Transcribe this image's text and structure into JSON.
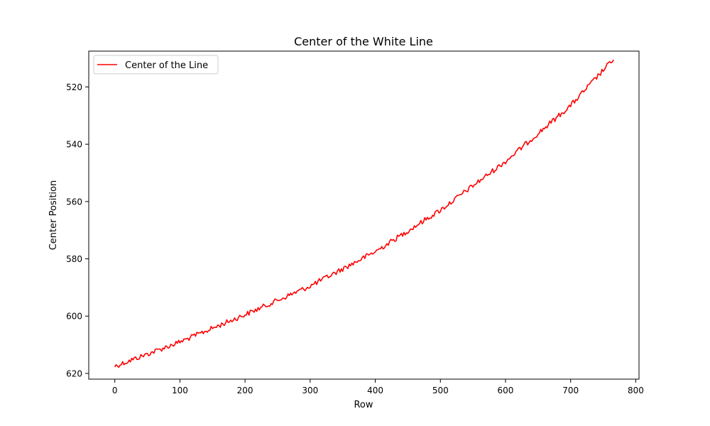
{
  "chart_data": {
    "type": "line",
    "title": "Center of the White Line",
    "xlabel": "Row",
    "ylabel": "Center Position",
    "xlim": [
      -40,
      805
    ],
    "ylim": [
      622,
      507.5
    ],
    "y_inverted": true,
    "grid": false,
    "legend_position": "top-left",
    "x_ticks": [
      0,
      100,
      200,
      300,
      400,
      500,
      600,
      700,
      800
    ],
    "y_ticks": [
      520,
      540,
      560,
      580,
      600,
      620
    ],
    "series": [
      {
        "name": "Center of the Line",
        "color": "#ff0000",
        "x_start": 0,
        "x_end": 767,
        "trend_points": [
          [
            0,
            617.5
          ],
          [
            100,
            609
          ],
          [
            200,
            599.5
          ],
          [
            300,
            589.5
          ],
          [
            400,
            577.5
          ],
          [
            500,
            563
          ],
          [
            600,
            546
          ],
          [
            700,
            526.5
          ],
          [
            767,
            510
          ]
        ],
        "noise_amplitude": 0.9
      }
    ]
  }
}
